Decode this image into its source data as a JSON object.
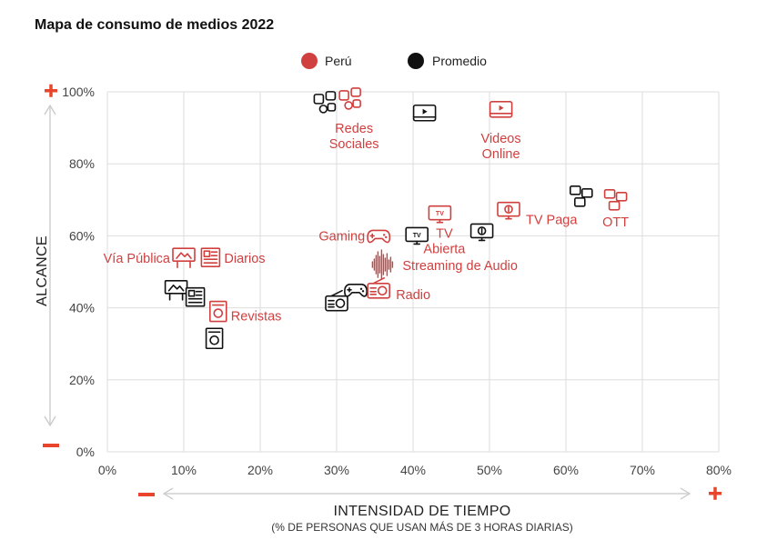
{
  "title": "Mapa de consumo de medios 2022",
  "colors": {
    "peru": "#d0403f",
    "promedio": "#111111",
    "plus": "#e8452c",
    "minus": "#e8452c",
    "grid": "#dddddd",
    "arrow": "#c8c8c8"
  },
  "legend": [
    {
      "label": "Perú",
      "color": "#d0403f"
    },
    {
      "label": "Promedio",
      "color": "#111111"
    }
  ],
  "axes": {
    "y_title": "ALCANCE",
    "x_title": "INTENSIDAD DE TIEMPO",
    "x_subtitle": "(% DE PERSONAS QUE USAN MÁS DE 3 HORAS DIARIAS)",
    "plus_symbol": "+",
    "minus_symbol": "−"
  },
  "chart_data": {
    "type": "scatter",
    "title": "Mapa de consumo de medios 2022",
    "xlabel": "INTENSIDAD DE TIEMPO",
    "ylabel": "ALCANCE",
    "xlim": [
      0,
      80
    ],
    "ylim": [
      0,
      100
    ],
    "x_ticks": [
      "0%",
      "10%",
      "20%",
      "30%",
      "40%",
      "50%",
      "60%",
      "70%",
      "80%"
    ],
    "y_ticks": [
      "0%",
      "20%",
      "40%",
      "60%",
      "80%",
      "100%"
    ],
    "grid": true,
    "legend_position": "top",
    "series": [
      {
        "name": "Perú",
        "points": [
          {
            "medium": "Redes Sociales",
            "x": 31.8,
            "y": 98,
            "icon": "social-icon",
            "label": "Redes\nSociales"
          },
          {
            "medium": "Videos Online",
            "x": 51.5,
            "y": 95,
            "icon": "video-icon",
            "label": "Videos\nOnline"
          },
          {
            "medium": "OTT",
            "x": 66.5,
            "y": 70,
            "icon": "ott-icon",
            "label": "OTT"
          },
          {
            "medium": "TV Paga",
            "x": 52.5,
            "y": 67,
            "icon": "tv-paid-icon",
            "label": "TV Paga"
          },
          {
            "medium": "TV Abierta",
            "x": 43.5,
            "y": 66,
            "icon": "tv-icon",
            "label": "TV\nAbierta"
          },
          {
            "medium": "Gaming",
            "x": 35.5,
            "y": 60,
            "icon": "gamepad-icon",
            "label": "Gaming"
          },
          {
            "medium": "Streaming de Audio",
            "x": 36,
            "y": 52,
            "icon": "soundwave-icon",
            "label": "Streaming de Audio"
          },
          {
            "medium": "Radio",
            "x": 35.5,
            "y": 45,
            "icon": "radio-icon",
            "label": "Radio"
          },
          {
            "medium": "Vía Pública",
            "x": 10,
            "y": 54,
            "icon": "billboard-icon",
            "label": "Vía Pública"
          },
          {
            "medium": "Diarios",
            "x": 13.5,
            "y": 54,
            "icon": "newspaper-icon",
            "label": "Diarios"
          },
          {
            "medium": "Revistas",
            "x": 14.5,
            "y": 39,
            "icon": "magazine-icon",
            "label": "Revistas"
          }
        ]
      },
      {
        "name": "Promedio",
        "points": [
          {
            "medium": "Redes Sociales",
            "x": 28.5,
            "y": 97,
            "icon": "social-icon"
          },
          {
            "medium": "Videos Online",
            "x": 41.5,
            "y": 94,
            "icon": "video-icon"
          },
          {
            "medium": "OTT",
            "x": 62,
            "y": 71,
            "icon": "ott-icon"
          },
          {
            "medium": "TV Paga",
            "x": 49,
            "y": 61,
            "icon": "tv-paid-icon"
          },
          {
            "medium": "TV Abierta",
            "x": 40.5,
            "y": 60,
            "icon": "tv-icon"
          },
          {
            "medium": "Gaming",
            "x": 32.5,
            "y": 45,
            "icon": "gamepad-icon"
          },
          {
            "medium": "Radio",
            "x": 30,
            "y": 41.5,
            "icon": "radio-icon"
          },
          {
            "medium": "Vía Pública",
            "x": 9,
            "y": 45,
            "icon": "billboard-icon"
          },
          {
            "medium": "Diarios",
            "x": 11.5,
            "y": 43,
            "icon": "newspaper-icon"
          },
          {
            "medium": "Revistas",
            "x": 14,
            "y": 31.5,
            "icon": "magazine-icon"
          }
        ]
      }
    ]
  }
}
